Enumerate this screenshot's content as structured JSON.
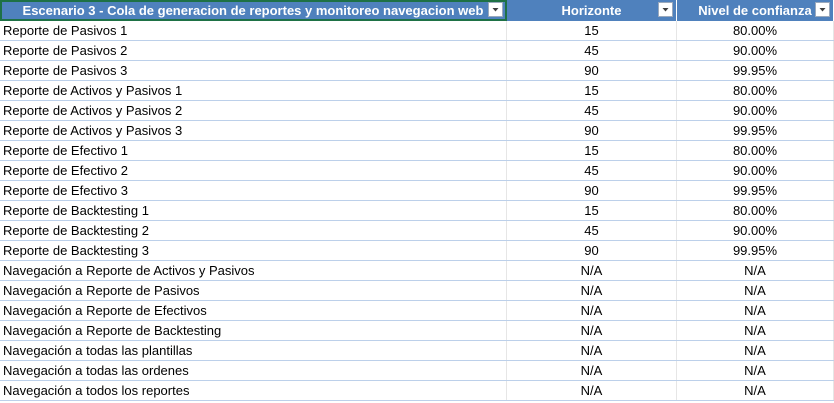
{
  "table": {
    "columns": [
      {
        "label": "Escenario 3 - Cola de generacion de reportes y monitoreo navegacion web",
        "filter_icon": "dropdown-arrow-icon"
      },
      {
        "label": "Horizonte",
        "filter_icon": "dropdown-arrow-icon"
      },
      {
        "label": "Nivel de confianza",
        "filter_icon": "dropdown-arrow-icon"
      }
    ],
    "header_color": "#4f81bd",
    "rows": [
      {
        "name": "Reporte de Pasivos 1",
        "horizonte": "15",
        "confianza": "80.00%"
      },
      {
        "name": "Reporte de Pasivos 2",
        "horizonte": "45",
        "confianza": "90.00%"
      },
      {
        "name": "Reporte de Pasivos 3",
        "horizonte": "90",
        "confianza": "99.95%"
      },
      {
        "name": "Reporte de Activos y Pasivos 1",
        "horizonte": "15",
        "confianza": "80.00%"
      },
      {
        "name": "Reporte de Activos y Pasivos 2",
        "horizonte": "45",
        "confianza": "90.00%"
      },
      {
        "name": "Reporte de Activos y Pasivos 3",
        "horizonte": "90",
        "confianza": "99.95%"
      },
      {
        "name": "Reporte de Efectivo 1",
        "horizonte": "15",
        "confianza": "80.00%"
      },
      {
        "name": "Reporte de Efectivo 2",
        "horizonte": "45",
        "confianza": "90.00%"
      },
      {
        "name": "Reporte de Efectivo 3",
        "horizonte": "90",
        "confianza": "99.95%"
      },
      {
        "name": "Reporte de Backtesting 1",
        "horizonte": "15",
        "confianza": "80.00%"
      },
      {
        "name": "Reporte de Backtesting 2",
        "horizonte": "45",
        "confianza": "90.00%"
      },
      {
        "name": "Reporte de Backtesting 3",
        "horizonte": "90",
        "confianza": "99.95%"
      },
      {
        "name": "Navegación a Reporte de Activos y Pasivos",
        "horizonte": "N/A",
        "confianza": "N/A"
      },
      {
        "name": "Navegación a Reporte de Pasivos",
        "horizonte": "N/A",
        "confianza": "N/A"
      },
      {
        "name": "Navegación a Reporte de Efectivos",
        "horizonte": "N/A",
        "confianza": "N/A"
      },
      {
        "name": "Navegación a Reporte de Backtesting",
        "horizonte": "N/A",
        "confianza": "N/A"
      },
      {
        "name": "Navegación a todas las plantillas",
        "horizonte": "N/A",
        "confianza": "N/A"
      },
      {
        "name": "Navegación a todas las ordenes",
        "horizonte": "N/A",
        "confianza": "N/A"
      },
      {
        "name": "Navegación a todos los reportes",
        "horizonte": "N/A",
        "confianza": "N/A"
      }
    ]
  }
}
